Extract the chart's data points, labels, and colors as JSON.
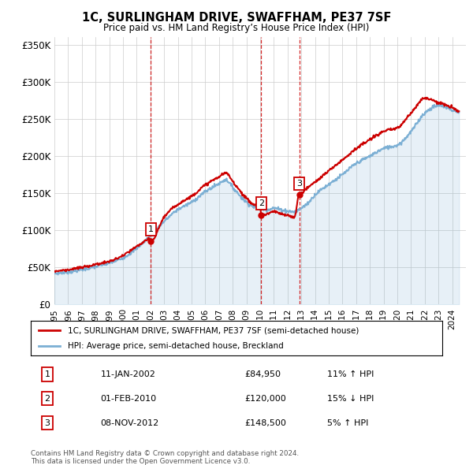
{
  "title": "1C, SURLINGHAM DRIVE, SWAFFHAM, PE37 7SF",
  "subtitle": "Price paid vs. HM Land Registry’s House Price Index (HPI)",
  "legend_label_red": "1C, SURLINGHAM DRIVE, SWAFFHAM, PE37 7SF (semi-detached house)",
  "legend_label_blue": "HPI: Average price, semi-detached house, Breckland",
  "footer_line1": "Contains HM Land Registry data © Crown copyright and database right 2024.",
  "footer_line2": "This data is licensed under the Open Government Licence v3.0.",
  "transactions": [
    {
      "num": "1",
      "date": "11-JAN-2002",
      "price": "£84,950",
      "hpi": "11% ↑ HPI",
      "year": 2002.03,
      "price_val": 84950
    },
    {
      "num": "2",
      "date": "01-FEB-2010",
      "price": "£120,000",
      "hpi": "15% ↓ HPI",
      "year": 2010.08,
      "price_val": 120000
    },
    {
      "num": "3",
      "date": "08-NOV-2012",
      "price": "£148,500",
      "hpi": "5% ↑ HPI",
      "year": 2012.85,
      "price_val": 148500
    }
  ],
  "ylim": [
    0,
    360000
  ],
  "xlim_start": 1995,
  "xlim_end": 2025,
  "red_color": "#cc0000",
  "blue_color": "#7bafd4",
  "dashed_color": "#cc0000",
  "grid_color": "#cccccc",
  "background_color": "#ffffff",
  "yticks": [
    0,
    50000,
    100000,
    150000,
    200000,
    250000,
    300000,
    350000
  ],
  "yticklabels": [
    "£0",
    "£50K",
    "£100K",
    "£150K",
    "£200K",
    "£250K",
    "£300K",
    "£350K"
  ]
}
